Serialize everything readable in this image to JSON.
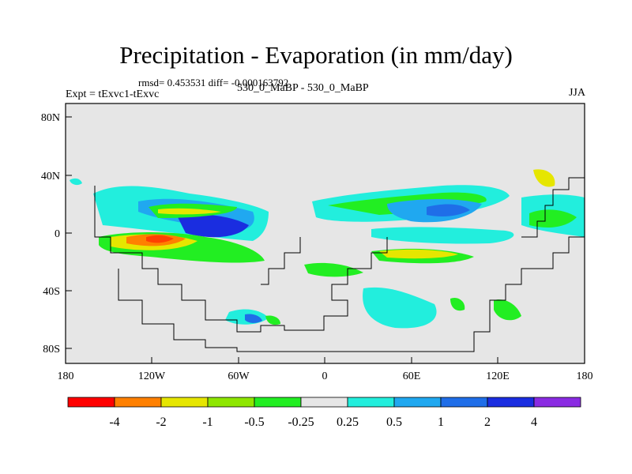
{
  "title": "Precipitation - Evaporation (in mm/day)",
  "stats": "rmsd= 0.453531 diff= -0.000163792",
  "left_label": "Expt = tExvc1-tExvc",
  "center_label": "530_0_MaBP - 530_0_MaBP",
  "right_label": "JJA",
  "lat_ticks": [
    "80N",
    "40N",
    "0",
    "40S",
    "80S"
  ],
  "lon_ticks": [
    "180",
    "120W",
    "60W",
    "0",
    "60E",
    "120E",
    "180"
  ],
  "colorbar": {
    "colors": [
      "#ff0000",
      "#ff8000",
      "#e6e600",
      "#8ee600",
      "#22ee22",
      "#e6e6e6",
      "#22eedd",
      "#20a8f0",
      "#1f6ee8",
      "#1a2de0",
      "#8a2be2"
    ],
    "labels": [
      "-4",
      "-2",
      "-1",
      "-0.5",
      "-0.25",
      "0.25",
      "0.5",
      "1",
      "2",
      "4"
    ]
  },
  "map_bg": "#e6e6e6"
}
